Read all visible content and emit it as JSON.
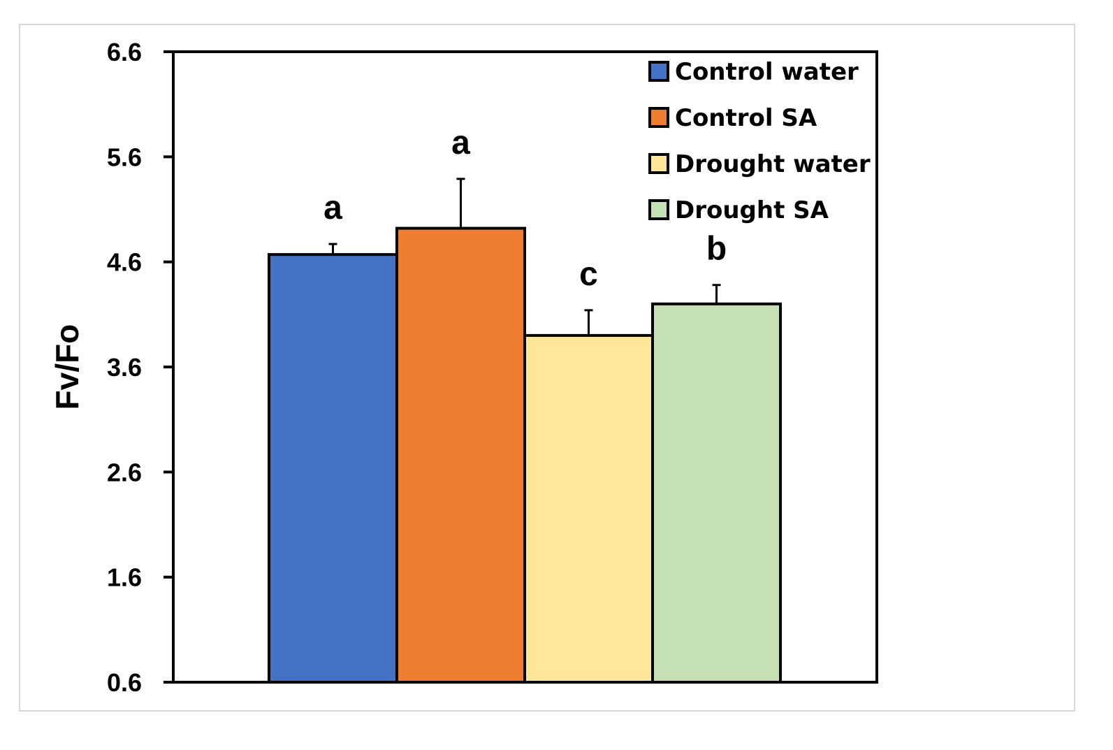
{
  "chart_data": {
    "type": "bar",
    "title": "",
    "xlabel": "",
    "ylabel": "Fv/Fo",
    "ylim": [
      0.6,
      6.6
    ],
    "yticks": [
      "6.6",
      "5.6",
      "4.6",
      "3.6",
      "2.6",
      "1.6",
      "0.6"
    ],
    "grid": false,
    "legend_position": "top-right",
    "series": [
      {
        "name": "Control water",
        "value": 4.67,
        "error": 0.1,
        "letter": "a",
        "color": "#4472C4"
      },
      {
        "name": "Control SA",
        "value": 4.92,
        "error": 0.47,
        "letter": "a",
        "color": "#ED7D31"
      },
      {
        "name": "Drought water",
        "value": 3.9,
        "error": 0.24,
        "letter": "c",
        "color": "#FFE699"
      },
      {
        "name": "Drought SA",
        "value": 4.2,
        "error": 0.18,
        "letter": "b",
        "color": "#C5E0B4"
      }
    ]
  }
}
